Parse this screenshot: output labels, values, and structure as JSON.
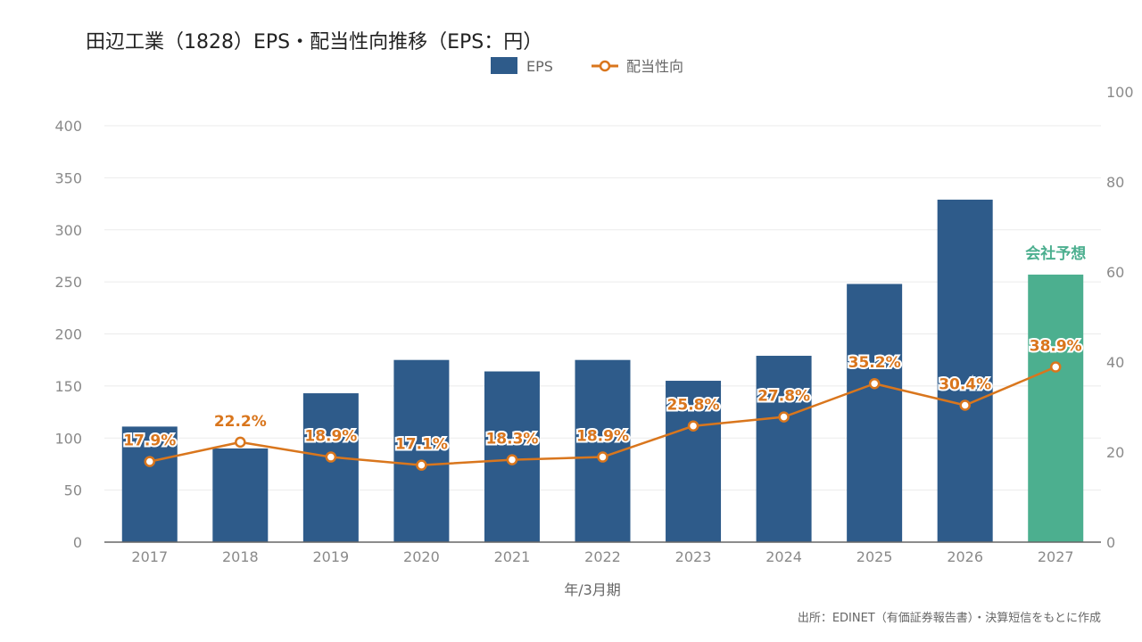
{
  "chart_data": {
    "type": "bar",
    "title": "田辺工業（1828）EPS・配当性向推移（EPS：円）",
    "categories": [
      "2017",
      "2018",
      "2019",
      "2020",
      "2021",
      "2022",
      "2023",
      "2024",
      "2025",
      "2026",
      "2027"
    ],
    "series": [
      {
        "name": "EPS",
        "type": "bar",
        "axis": "left",
        "color": "#2e5b8a",
        "values": [
          111,
          90,
          143,
          175,
          164,
          175,
          155,
          179,
          248,
          329,
          257
        ]
      },
      {
        "name": "配当性向",
        "type": "line",
        "axis": "right",
        "color": "#d9761d",
        "values": [
          17.9,
          22.2,
          18.9,
          17.1,
          18.3,
          18.9,
          25.8,
          27.8,
          35.2,
          30.4,
          38.9
        ],
        "labels": [
          "17.9%",
          "22.2%",
          "18.9%",
          "17.1%",
          "18.3%",
          "18.9%",
          "25.8%",
          "27.8%",
          "35.2%",
          "30.4%",
          "38.9%"
        ]
      }
    ],
    "forecast": {
      "index": 10,
      "label": "会社予想",
      "color": "#4caf8f"
    },
    "xlabel": "年/3月期",
    "ylim": [
      0,
      400
    ],
    "yticks": [
      "0",
      "50",
      "100",
      "150",
      "200",
      "250",
      "300",
      "350",
      "400"
    ],
    "y2lim": [
      0,
      100
    ],
    "y2ticks": [
      "0",
      "20",
      "40",
      "60",
      "80",
      "100"
    ],
    "grid": true,
    "legend": "top-center"
  },
  "source": "出所：EDINET（有価証券報告書）・決算短信をもとに作成"
}
